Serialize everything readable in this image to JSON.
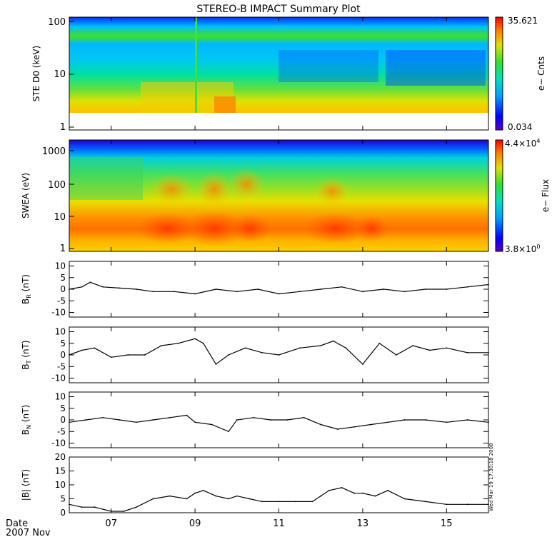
{
  "title": "STEREO-B IMPACT Summary Plot",
  "date_label": "Date",
  "year_month_label": "2007 Nov",
  "stamp": "Wed Mar 19 17:30:18 2008",
  "x_ticks": [
    "07",
    "09",
    "11",
    "13",
    "15"
  ],
  "chart_data": [
    {
      "id": "ste",
      "type": "heatmap",
      "ylabel": "STE D0 (keV)",
      "y_scale": "log",
      "ylim": [
        1,
        100
      ],
      "y_ticks": [
        "1",
        "10",
        "100"
      ],
      "colorbar": {
        "label": "e− Cnts",
        "max": "35.621",
        "min": "0.034"
      }
    },
    {
      "id": "swea",
      "type": "heatmap",
      "ylabel": "SWEA (eV)",
      "y_scale": "log",
      "ylim": [
        1,
        2000
      ],
      "y_ticks": [
        "1",
        "10",
        "100",
        "1000"
      ],
      "colorbar": {
        "label": "e− Flux",
        "max_base": "4.4×10",
        "max_exp": "4",
        "min_base": "3.8×10",
        "min_exp": "0"
      }
    },
    {
      "id": "br",
      "type": "line",
      "ylabel_main": "B",
      "ylabel_sub": "R",
      "ylabel_unit": "(nT)",
      "ylim": [
        -12,
        12
      ],
      "y_ticks": [
        "10",
        "5",
        "0",
        "-5",
        "-10"
      ],
      "x": [
        6.0,
        6.3,
        6.5,
        6.8,
        7.2,
        7.6,
        8.0,
        8.5,
        9.0,
        9.5,
        10.0,
        10.5,
        11.0,
        11.5,
        12.0,
        12.5,
        13.0,
        13.5,
        14.0,
        14.5,
        15.0,
        15.5,
        16.0
      ],
      "y": [
        0,
        1,
        3,
        1,
        0.5,
        0,
        -1,
        -1,
        -2,
        0,
        -1,
        0,
        -2,
        -1,
        0,
        1,
        -1,
        0,
        -1,
        0,
        0,
        1,
        2
      ]
    },
    {
      "id": "bt",
      "type": "line",
      "ylabel_main": "B",
      "ylabel_sub": "T",
      "ylabel_unit": "(nT)",
      "ylim": [
        -12,
        12
      ],
      "y_ticks": [
        "10",
        "5",
        "0",
        "-5",
        "-10"
      ],
      "x": [
        6.0,
        6.3,
        6.6,
        7.0,
        7.4,
        7.8,
        8.2,
        8.6,
        9.0,
        9.2,
        9.5,
        9.8,
        10.2,
        10.6,
        11.0,
        11.5,
        12.0,
        12.3,
        12.6,
        13.0,
        13.4,
        13.8,
        14.2,
        14.6,
        15.0,
        15.5,
        16.0
      ],
      "y": [
        0,
        2,
        3,
        -1,
        0,
        0,
        4,
        5,
        7,
        5,
        -4,
        0,
        3,
        1,
        0,
        3,
        4,
        6,
        3,
        -4,
        5,
        0,
        4,
        2,
        3,
        1,
        1
      ]
    },
    {
      "id": "bn",
      "type": "line",
      "ylabel_main": "B",
      "ylabel_sub": "N",
      "ylabel_unit": "(nT)",
      "ylim": [
        -12,
        12
      ],
      "y_ticks": [
        "10",
        "5",
        "0",
        "-5",
        "-10"
      ],
      "x": [
        6.0,
        6.4,
        6.8,
        7.2,
        7.6,
        8.0,
        8.4,
        8.8,
        9.0,
        9.4,
        9.8,
        10.0,
        10.4,
        10.8,
        11.2,
        11.6,
        12.0,
        12.4,
        12.8,
        13.2,
        13.6,
        14.0,
        14.5,
        15.0,
        15.5,
        16.0
      ],
      "y": [
        -1,
        0,
        1,
        0,
        -1,
        0,
        1,
        2,
        -1,
        -2,
        -5,
        0,
        1,
        0,
        0,
        1,
        -2,
        -4,
        -3,
        -2,
        -1,
        0,
        0,
        -1,
        0,
        -1
      ]
    },
    {
      "id": "bmag",
      "type": "line",
      "ylabel": "|B| (nT)",
      "ylim": [
        0,
        20
      ],
      "y_ticks": [
        "20",
        "15",
        "10",
        "5",
        "0"
      ],
      "x": [
        6.0,
        6.3,
        6.6,
        7.0,
        7.3,
        7.6,
        8.0,
        8.4,
        8.8,
        9.0,
        9.2,
        9.5,
        9.8,
        10.0,
        10.3,
        10.6,
        11.0,
        11.4,
        11.8,
        12.0,
        12.2,
        12.5,
        12.8,
        13.0,
        13.3,
        13.6,
        14.0,
        14.5,
        15.0,
        15.5,
        16.0
      ],
      "y": [
        3,
        2,
        2,
        0.5,
        0.5,
        2,
        5,
        6,
        5,
        7,
        8,
        6,
        5,
        6,
        5,
        4,
        4,
        4,
        4,
        6,
        8,
        9,
        7,
        7,
        6,
        8,
        5,
        4,
        3,
        3,
        3
      ]
    }
  ]
}
